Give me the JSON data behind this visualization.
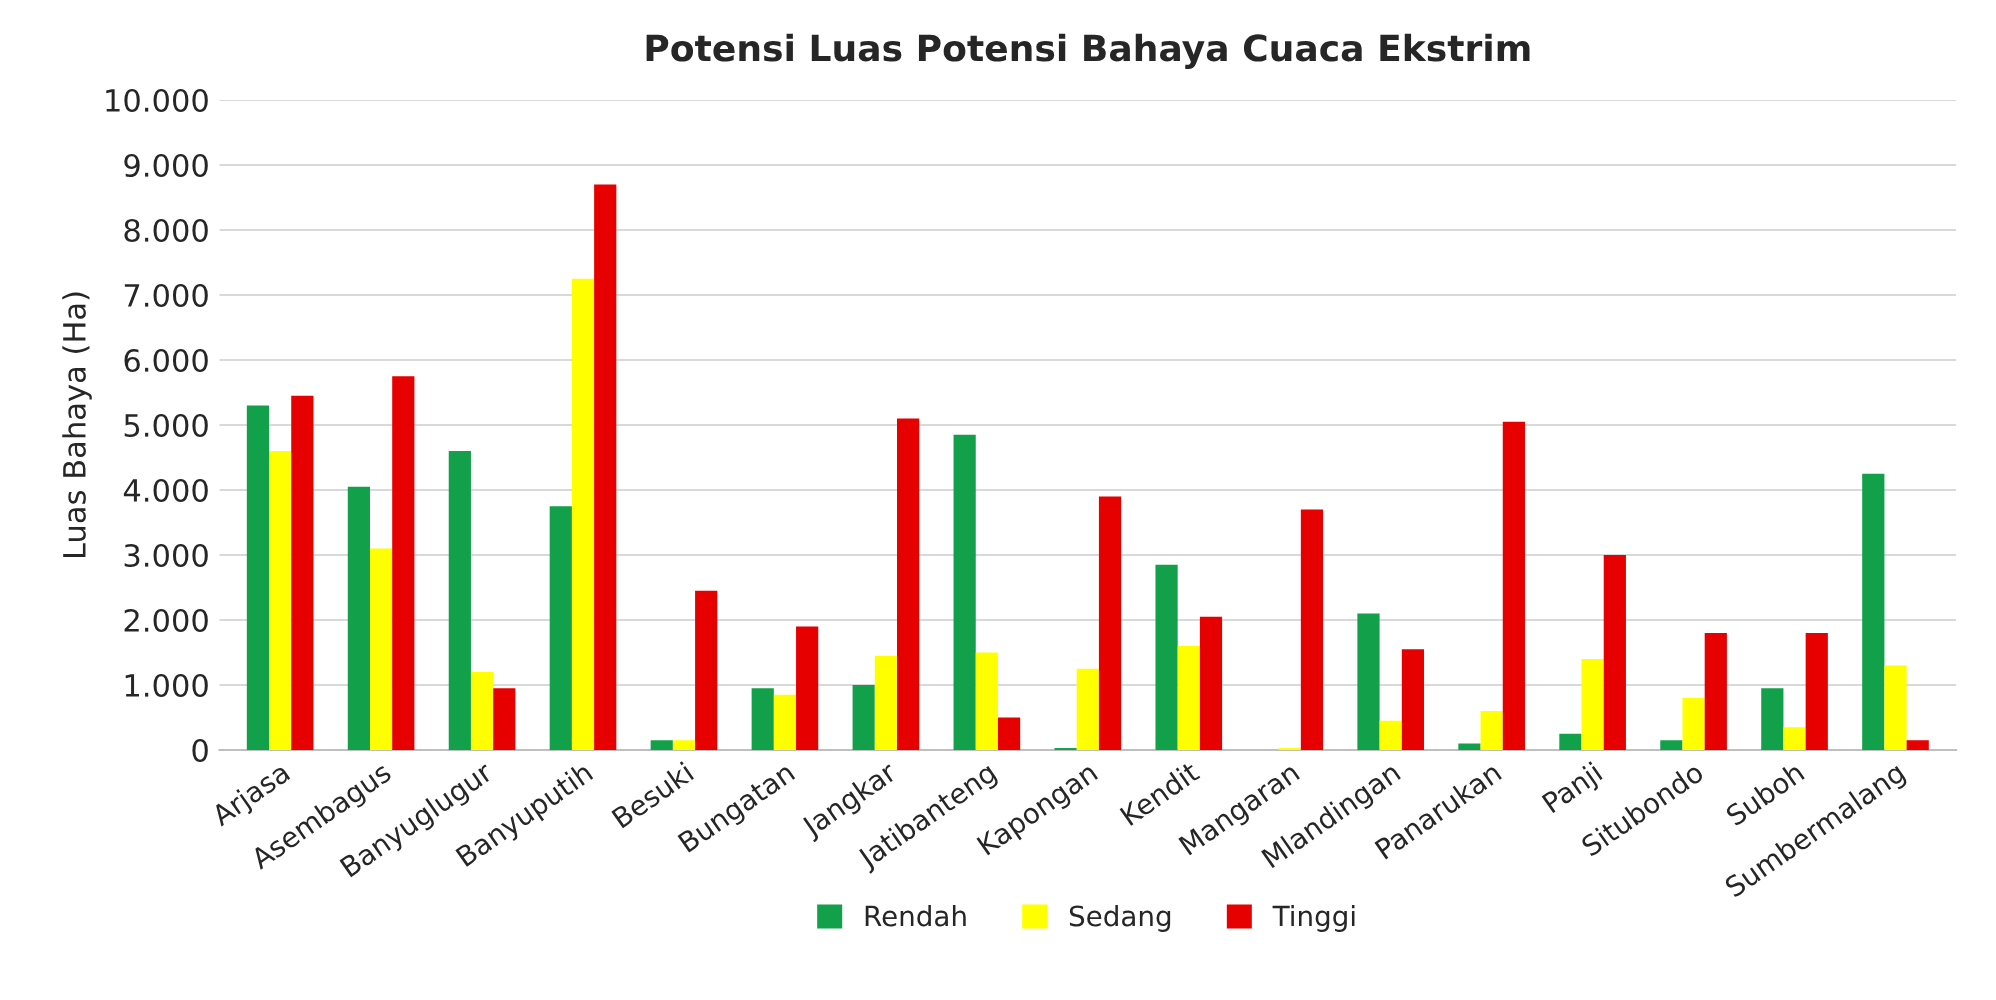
{
  "chart_data": {
    "type": "bar",
    "title": "Potensi Luas Potensi Bahaya Cuaca Ekstrim",
    "ylabel": "Luas Bahaya (Ha)",
    "categories": [
      "Arjasa",
      "Asembagus",
      "Banyuglugur",
      "Banyuputih",
      "Besuki",
      "Bungatan",
      "Jangkar",
      "Jatibanteng",
      "Kapongan",
      "Kendit",
      "Mangaran",
      "Mlandingan",
      "Panarukan",
      "Panji",
      "Situbondo",
      "Suboh",
      "Sumbermalang"
    ],
    "series": [
      {
        "name": "Rendah",
        "color": "#13a04a",
        "values": [
          5300,
          4050,
          4600,
          3750,
          150,
          950,
          1000,
          4850,
          30,
          2850,
          null,
          2100,
          100,
          250,
          150,
          950,
          4250
        ]
      },
      {
        "name": "Sedang",
        "color": "#ffff00",
        "values": [
          4600,
          3100,
          1200,
          7250,
          150,
          850,
          1450,
          1500,
          1250,
          1600,
          30,
          450,
          600,
          1400,
          800,
          350,
          1300
        ]
      },
      {
        "name": "Tinggi",
        "color": "#e60000",
        "values": [
          5450,
          5750,
          950,
          8700,
          2450,
          1900,
          5100,
          500,
          3900,
          2050,
          3700,
          1550,
          5050,
          3000,
          1800,
          1800,
          150
        ]
      }
    ],
    "ylim": [
      0,
      10000
    ],
    "yticks": [
      0,
      {
        "value": 1000,
        "label": "1.000"
      },
      {
        "value": 2000,
        "label": "2.000"
      },
      {
        "value": 3000,
        "label": "3.000"
      },
      {
        "value": 4000,
        "label": "4.000"
      },
      {
        "value": 5000,
        "label": "5.000"
      },
      {
        "value": 6000,
        "label": "6.000"
      },
      {
        "value": 7000,
        "label": "7.000"
      },
      {
        "value": 8000,
        "label": "8.000"
      },
      {
        "value": 9000,
        "label": "9.000"
      },
      {
        "value": 10000,
        "label": "10.000"
      }
    ],
    "grid": "y",
    "legend": "bottom"
  }
}
